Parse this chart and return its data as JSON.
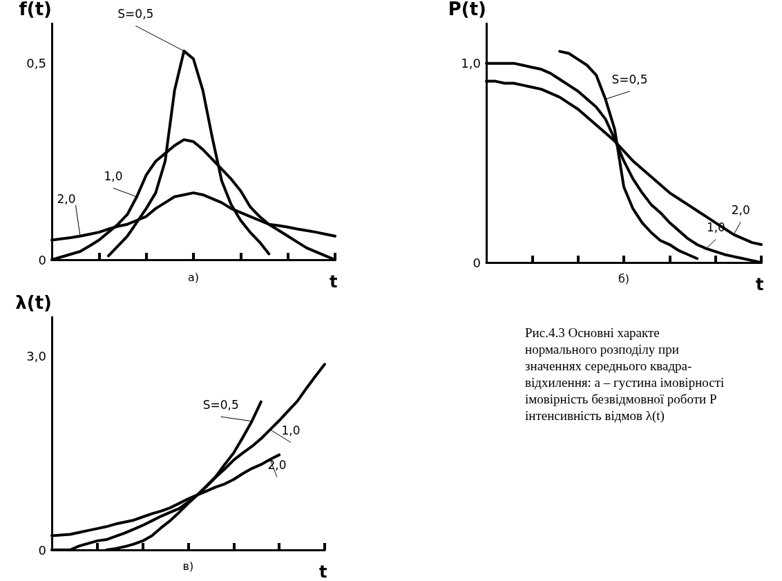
{
  "chart_data": [
    {
      "type": "line",
      "ylabel": "f(t)",
      "xlabel": "t",
      "categories": [
        null,
        null,
        null,
        null,
        null,
        null,
        null,
        null,
        null,
        null,
        null,
        null,
        null,
        null,
        null,
        null,
        null,
        null,
        null,
        null,
        null,
        null,
        null,
        null,
        null,
        null,
        null,
        null,
        null,
        null,
        null
      ],
      "ylim": [
        0,
        0.6
      ],
      "yticks": [
        {
          "value": 0,
          "label": "0"
        },
        {
          "value": 0.5,
          "label": "0,5"
        }
      ],
      "tick_labels": "y",
      "grid": false,
      "annotations": [
        "а)"
      ],
      "series": [
        {
          "name": "S=0,5",
          "color": "#000000",
          "values": [
            null,
            null,
            null,
            null,
            null,
            null,
            0.01,
            0.035,
            0.06,
            0.095,
            0.13,
            0.17,
            0.25,
            0.43,
            0.53,
            0.51,
            0.43,
            0.31,
            0.2,
            0.14,
            0.1,
            0.07,
            0.045,
            0.015,
            null,
            null,
            null,
            null,
            null,
            null,
            null
          ]
        },
        {
          "name": "1,0",
          "color": "#000000",
          "values": [
            0,
            0.007,
            0.014,
            0.021,
            0.035,
            0.05,
            0.07,
            0.09,
            0.115,
            0.16,
            0.215,
            0.25,
            0.27,
            0.29,
            0.305,
            0.3,
            0.28,
            0.255,
            0.23,
            0.205,
            0.175,
            0.135,
            0.11,
            0.09,
            0.075,
            0.06,
            0.045,
            0.03,
            0.02,
            0.01,
            0
          ]
        },
        {
          "name": "2,0",
          "color": "#000000",
          "values": [
            0.05,
            0.053,
            0.056,
            0.06,
            0.065,
            0.07,
            0.078,
            0.085,
            0.09,
            0.1,
            0.11,
            0.13,
            0.145,
            0.16,
            0.165,
            0.17,
            0.165,
            0.155,
            0.145,
            0.13,
            0.12,
            0.11,
            0.1,
            0.09,
            0.087,
            0.083,
            0.078,
            0.074,
            0.07,
            0.065,
            0.06
          ]
        }
      ]
    },
    {
      "type": "line",
      "ylabel": "P(t)",
      "xlabel": "t",
      "categories": [
        null,
        null,
        null,
        null,
        null,
        null,
        null,
        null,
        null,
        null,
        null,
        null,
        null,
        null,
        null,
        null,
        null,
        null,
        null,
        null,
        null,
        null,
        null,
        null,
        null,
        null,
        null,
        null,
        null,
        null,
        null
      ],
      "ylim": [
        0,
        1.2
      ],
      "yticks": [
        {
          "value": 0,
          "label": "0"
        },
        {
          "value": 1,
          "label": "1,0"
        }
      ],
      "tick_labels": "y",
      "grid": false,
      "annotations": [
        "б)"
      ],
      "series": [
        {
          "name": "S=0,5",
          "color": "#000000",
          "values": [
            null,
            null,
            null,
            null,
            null,
            null,
            null,
            null,
            1.06,
            1.05,
            1.02,
            0.99,
            0.94,
            0.82,
            0.67,
            0.38,
            0.27,
            0.2,
            0.15,
            0.11,
            0.09,
            0.06,
            0.04,
            0.02,
            null,
            null,
            null,
            null,
            null,
            null,
            null
          ]
        },
        {
          "name": "1,0",
          "color": "#000000",
          "values": [
            1,
            1,
            1,
            1,
            0.99,
            0.98,
            0.97,
            0.95,
            0.92,
            0.89,
            0.86,
            0.82,
            0.78,
            0.72,
            0.62,
            0.51,
            0.42,
            0.35,
            0.29,
            0.25,
            0.2,
            0.16,
            0.12,
            0.09,
            0.07,
            0.055,
            0.04,
            0.03,
            0.02,
            0.01,
            0
          ]
        },
        {
          "name": "2,0",
          "color": "#000000",
          "values": [
            0.91,
            0.91,
            0.9,
            0.9,
            0.89,
            0.88,
            0.87,
            0.85,
            0.83,
            0.8,
            0.77,
            0.73,
            0.69,
            0.65,
            0.61,
            0.56,
            0.51,
            0.47,
            0.43,
            0.39,
            0.35,
            0.32,
            0.29,
            0.26,
            0.23,
            0.2,
            0.17,
            0.14,
            0.12,
            0.1,
            0.09
          ]
        }
      ]
    },
    {
      "type": "line",
      "ylabel": "λ(t)",
      "xlabel": "t",
      "categories": [
        null,
        null,
        null,
        null,
        null,
        null,
        null,
        null,
        null,
        null,
        null,
        null,
        null,
        null,
        null,
        null,
        null,
        null,
        null,
        null,
        null,
        null,
        null,
        null,
        null,
        null,
        null,
        null,
        null,
        null,
        null
      ],
      "ylim": [
        0,
        3.6
      ],
      "yticks": [
        {
          "value": 0,
          "label": "0"
        },
        {
          "value": 3,
          "label": "3,0"
        }
      ],
      "tick_labels": "y",
      "grid": false,
      "annotations": [
        "в)"
      ],
      "series": [
        {
          "name": "S=0,5",
          "color": "#000000",
          "values": [
            null,
            null,
            null,
            null,
            null,
            null,
            0,
            0.02,
            0.05,
            0.09,
            0.14,
            0.22,
            0.34,
            0.45,
            0.58,
            0.72,
            0.85,
            0.99,
            1.13,
            1.32,
            1.5,
            1.74,
            1.99,
            2.29,
            null,
            null,
            null,
            null,
            null,
            null,
            null
          ]
        },
        {
          "name": "1,0",
          "color": "#000000",
          "values": [
            0,
            0,
            0,
            0.06,
            0.1,
            0.14,
            0.16,
            0.21,
            0.26,
            0.32,
            0.38,
            0.45,
            0.52,
            0.58,
            0.64,
            0.74,
            0.85,
            0.98,
            1.12,
            1.25,
            1.39,
            1.5,
            1.6,
            1.72,
            1.86,
            2,
            2.15,
            2.3,
            2.5,
            2.69,
            2.87
          ]
        },
        {
          "name": "2,0",
          "color": "#000000",
          "values": [
            0.22,
            0.23,
            0.24,
            0.27,
            0.3,
            0.33,
            0.36,
            0.4,
            0.43,
            0.46,
            0.51,
            0.56,
            0.6,
            0.65,
            0.72,
            0.79,
            0.85,
            0.91,
            0.97,
            1.02,
            1.09,
            1.18,
            1.26,
            1.32,
            1.4,
            1.47,
            null,
            null,
            null,
            null,
            null
          ]
        }
      ]
    },
    {
      "type": "other",
      "annotations": [
        "Рис.4.3 Основні характе\nнормального розподілу при\nзначеннях середнього квадра-\nвідхилення: а – густина імовірності\nімовірність безвідмовної роботи P\nінтенсивність відмов λ(t)"
      ]
    }
  ]
}
